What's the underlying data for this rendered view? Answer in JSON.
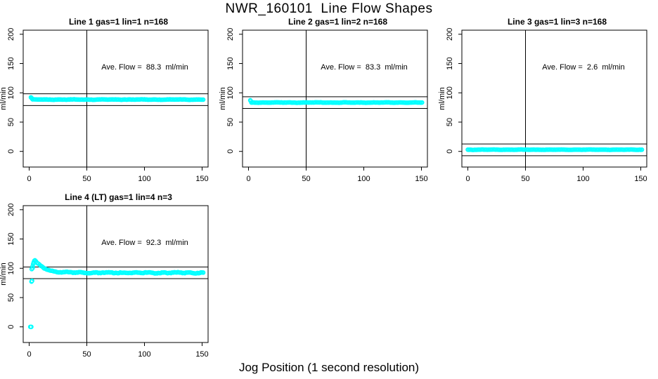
{
  "page": {
    "title": "NWR_160101  Line Flow Shapes",
    "xlabel": "Jog Position (1 second resolution)"
  },
  "style": {
    "point_color": "#00FFFF",
    "axis_color": "#000000",
    "background": "#FFFFFF"
  },
  "chart_data": {
    "type": "scatter",
    "title": "NWR_160101  Line Flow Shapes",
    "xlabel": "Jog Position (1 second resolution)",
    "ylabel": "ml/min",
    "x_ticks": [
      0,
      50,
      100,
      150
    ],
    "y_ticks": [
      0,
      50,
      100,
      150,
      200
    ],
    "xlim": [
      -5,
      155.5
    ],
    "ylim": [
      -27,
      207
    ],
    "grid": false,
    "vline_x": 50,
    "marker": "open-circle",
    "panels": [
      {
        "title": "Line 1 gas=1 lin=1 n=168",
        "ave_flow_ml_min": 88.3,
        "annotation": "Ave. Flow =  88.3  ml/min",
        "ref_lines": [
          98.3,
          78.3
        ],
        "n": 168,
        "col": 0,
        "row": 0,
        "series": {
          "x_start": 3,
          "x_end": 151,
          "step": 1,
          "base": 88.5,
          "noise": 0.35,
          "head": [
            [
              1.5,
              92.3
            ],
            [
              2,
              91.2
            ],
            [
              2.5,
              90.1
            ]
          ],
          "outliers": []
        }
      },
      {
        "title": "Line 2 gas=1 lin=2 n=168",
        "ave_flow_ml_min": 83.3,
        "annotation": "Ave. Flow =  83.3  ml/min",
        "ref_lines": [
          93.3,
          73.3
        ],
        "n": 168,
        "col": 1,
        "row": 0,
        "series": {
          "x_start": 2.5,
          "x_end": 151,
          "step": 1,
          "base": 83.4,
          "noise": 0.35,
          "head": [
            [
              1.5,
              87.2
            ],
            [
              2,
              85.9
            ]
          ],
          "outliers": []
        }
      },
      {
        "title": "Line 3 gas=1 lin=3 n=168",
        "ave_flow_ml_min": 2.6,
        "annotation": "Ave. Flow =  2.6  ml/min",
        "ref_lines": [
          12.6,
          -7.4
        ],
        "n": 168,
        "col": 2,
        "row": 0,
        "series": {
          "x_start": 0,
          "x_end": 151,
          "step": 1,
          "base": 2.9,
          "noise": 0.3,
          "head": [],
          "outliers": []
        }
      },
      {
        "title": "Line 4 (LT) gas=1 lin=4 n=3",
        "ave_flow_ml_min": 92.3,
        "annotation": "Ave. Flow =  92.3  ml/min",
        "ref_lines": [
          102.3,
          82.3
        ],
        "n": 3,
        "col": 0,
        "row": 1,
        "series": {
          "x_start": 5,
          "x_end": 151,
          "step": 1,
          "base": 92.4,
          "noise": 0.9,
          "decay": {
            "amp": 21,
            "x0": 5,
            "tau": 8
          },
          "head": [
            [
              3,
              103.5
            ],
            [
              3.5,
              107.5
            ],
            [
              4,
              110.5
            ],
            [
              4.5,
              112.8
            ]
          ],
          "outliers": [
            [
              1,
              0
            ],
            [
              1.8,
              0
            ],
            [
              2,
              77.3
            ],
            [
              2.5,
              78.6
            ],
            [
              2.2,
              98.6
            ],
            [
              3,
              100.3
            ]
          ]
        }
      }
    ]
  }
}
